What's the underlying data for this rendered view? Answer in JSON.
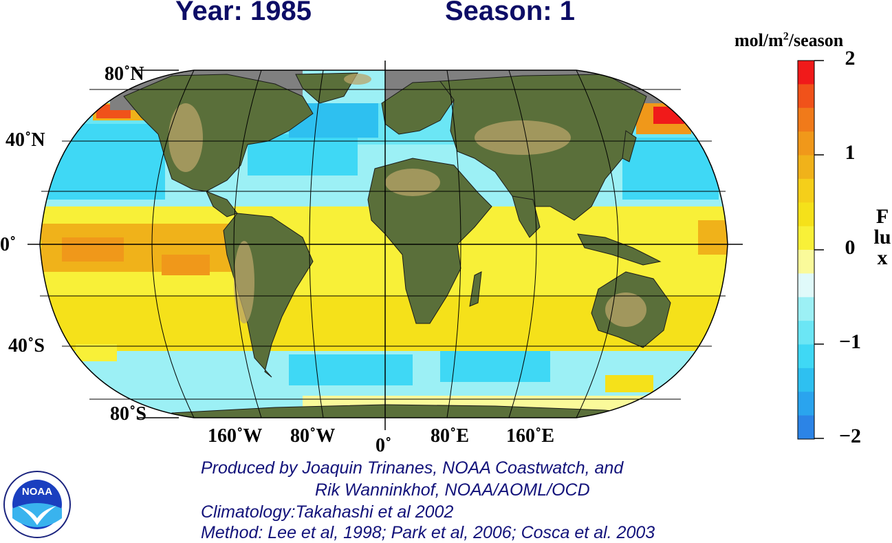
{
  "header": {
    "year_label": "Year: 1985",
    "season_label": "Season: 1"
  },
  "map": {
    "projection": "robinson",
    "latitude_labels": [
      "80˚N",
      "40˚N",
      "0˚",
      "40˚S",
      "80˚S"
    ],
    "longitude_labels": [
      "160˚W",
      "80˚W",
      "0˚",
      "80˚E",
      "160˚E"
    ],
    "colors": {
      "land": "#5a6f3a",
      "land_highlight": "#b9a46a",
      "no_data": "#808080"
    }
  },
  "colorbar": {
    "units_base": "mol/m",
    "units_exp": "2",
    "units_tail": "/season",
    "axis_label": "Flux",
    "tick_labels": [
      "2",
      "1",
      "0",
      "−1",
      "−2"
    ],
    "range": [
      -2,
      2
    ],
    "colors": [
      "#f01a1a",
      "#f0521a",
      "#f07a1a",
      "#f0981a",
      "#f0b21a",
      "#f5cf1a",
      "#f5e11a",
      "#f8f038",
      "#fafa9a",
      "#e0fafa",
      "#9cf0f5",
      "#6be6f5",
      "#3fd8f5",
      "#2ec0f0",
      "#2aa4ee",
      "#2c84e6"
    ]
  },
  "credits": {
    "line1": "Produced by Joaquin Trinanes, NOAA Coastwatch, and",
    "line2": "Rik Wanninkhof, NOAA/AOML/OCD",
    "line3": "Climatology:Takahashi et al 2002",
    "line4": "Method: Lee et al, 1998; Park et al, 2006; Cosca et al. 2003"
  },
  "logo": {
    "text": "NOAA"
  }
}
